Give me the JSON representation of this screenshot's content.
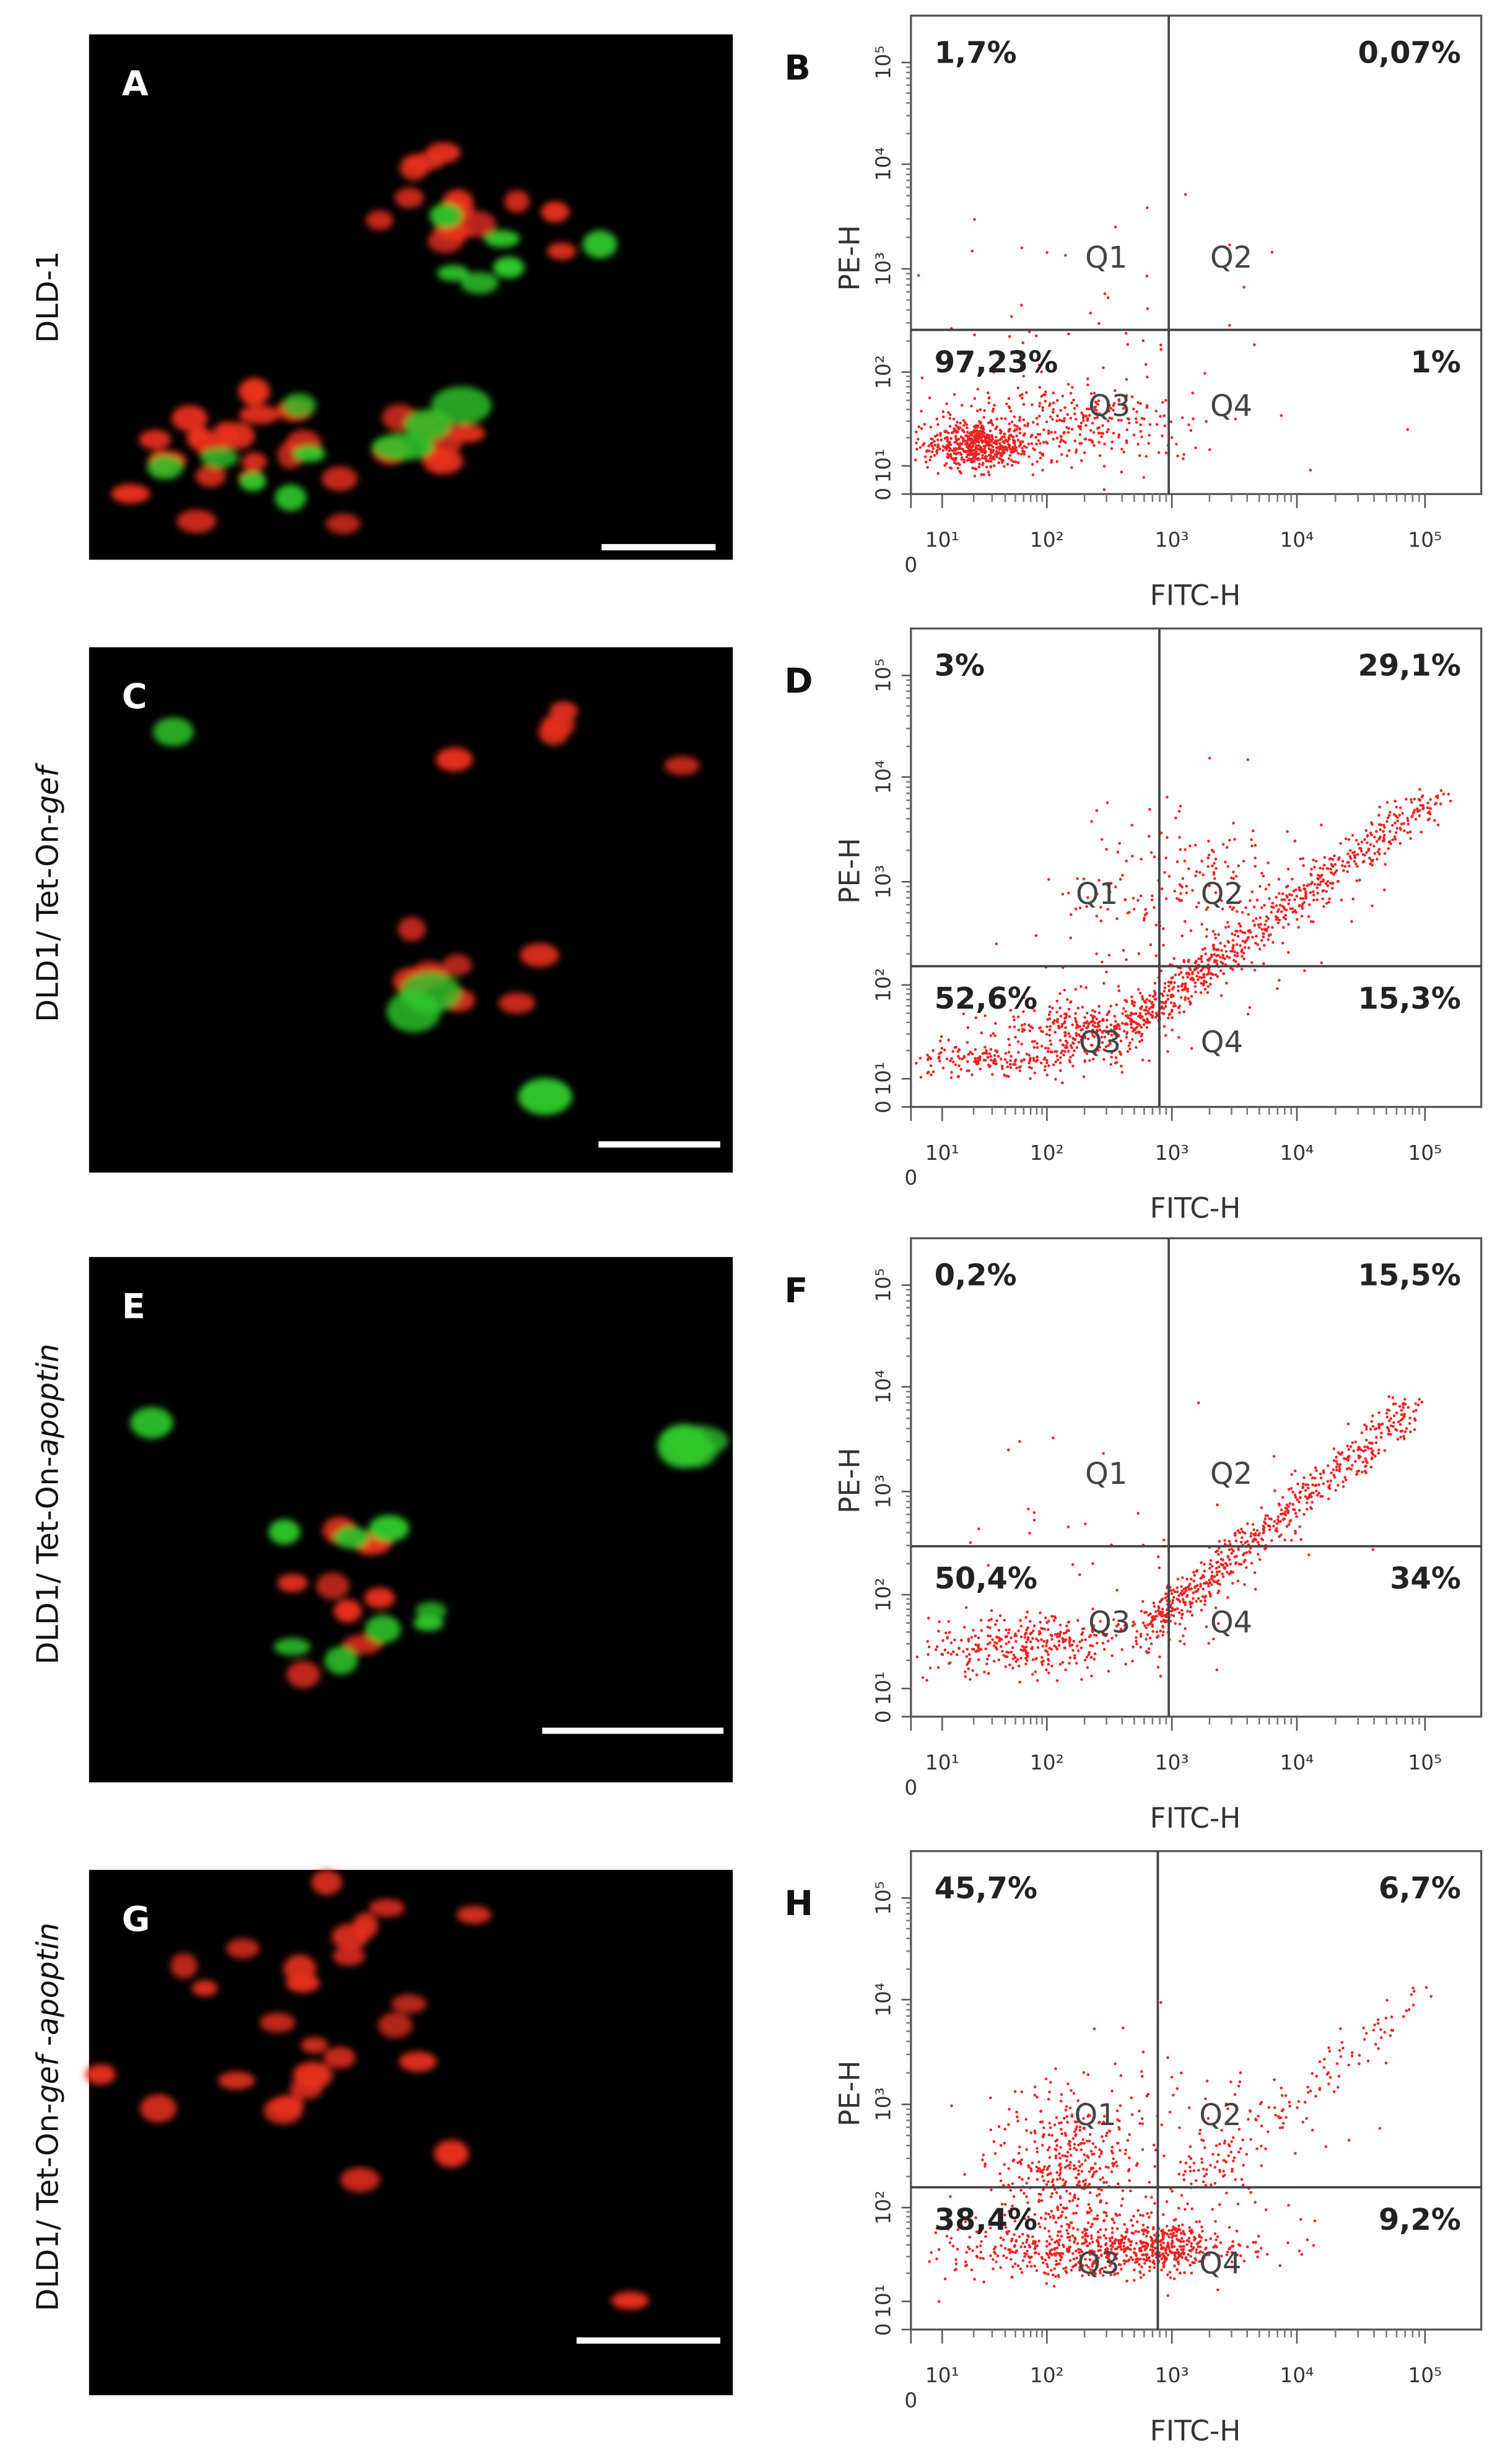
{
  "panels": [
    {
      "image_label": "A",
      "row_label": [
        {
          "text": "DLD-1",
          "italic": false
        }
      ],
      "plot_label": "B",
      "quadrants": [
        "1,7%",
        "0,07%",
        "97,23%",
        "1%"
      ]
    },
    {
      "image_label": "C",
      "row_label": [
        {
          "text": "DLD1/ Tet-On-",
          "italic": false
        },
        {
          "text": "gef",
          "italic": true
        }
      ],
      "plot_label": "D",
      "quadrants": [
        "3%",
        "29,1%",
        "52,6%",
        "15,3%"
      ]
    },
    {
      "image_label": "E",
      "row_label": [
        {
          "text": "DLD1/ Tet-On-",
          "italic": false
        },
        {
          "text": "apoptin",
          "italic": true
        }
      ],
      "plot_label": "F",
      "quadrants": [
        "0,2%",
        "15,5%",
        "50,4%",
        "34%"
      ]
    },
    {
      "image_label": "G",
      "row_label": [
        {
          "text": "DLD1/ Tet-On-",
          "italic": false
        },
        {
          "text": "gef",
          "italic": true
        },
        {
          "text": " -",
          "italic": false
        },
        {
          "text": "apoptin",
          "italic": true
        }
      ],
      "plot_label": "H",
      "quadrants": [
        "45,7%",
        "6,7%",
        "38,4%",
        "9,2%"
      ]
    }
  ],
  "quadrant_names": [
    "Q1",
    "Q2",
    "Q3",
    "Q4"
  ],
  "y_axis_label": "PE-H",
  "x_axis_label": "FITC-H",
  "y_ticks": [
    "0",
    "10¹",
    "10²",
    "10³",
    "10⁴",
    "10⁵"
  ],
  "x_ticks": [
    "0",
    "10¹",
    "10²",
    "10³",
    "10⁴",
    "10⁵"
  ]
}
